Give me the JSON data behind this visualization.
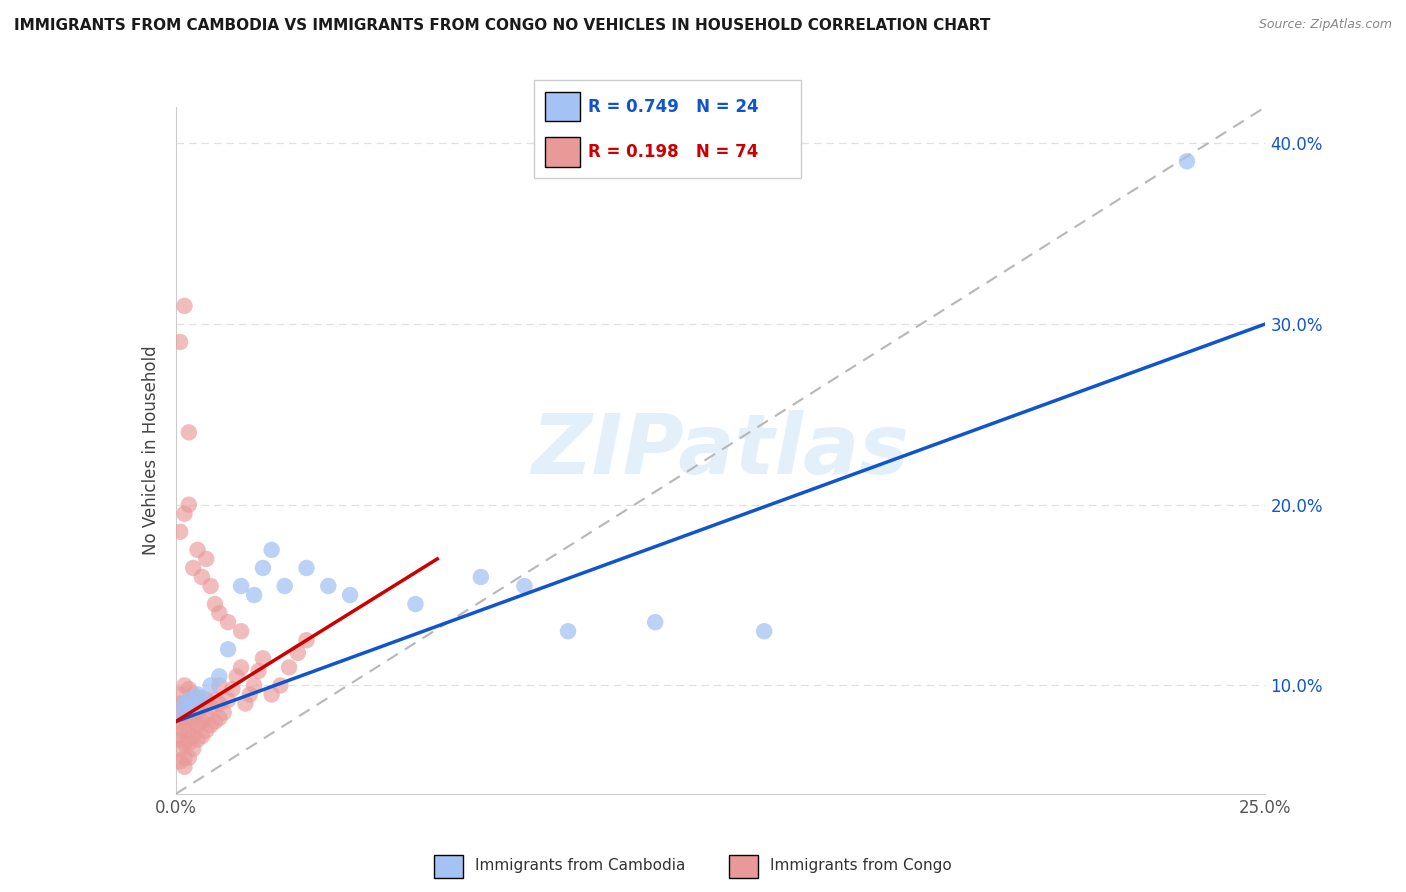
{
  "title": "IMMIGRANTS FROM CAMBODIA VS IMMIGRANTS FROM CONGO NO VEHICLES IN HOUSEHOLD CORRELATION CHART",
  "source": "Source: ZipAtlas.com",
  "ylabel": "No Vehicles in Household",
  "xlim": [
    0.0,
    0.25
  ],
  "ylim": [
    0.04,
    0.42
  ],
  "x_ticks": [
    0.0,
    0.05,
    0.1,
    0.15,
    0.2,
    0.25
  ],
  "y_ticks": [
    0.1,
    0.2,
    0.3,
    0.4
  ],
  "x_tick_labels": [
    "0.0%",
    "",
    "",
    "",
    "",
    "25.0%"
  ],
  "y_tick_labels_right": [
    "10.0%",
    "20.0%",
    "30.0%",
    "40.0%"
  ],
  "cambodia_color": "#a4c2f4",
  "congo_color": "#ea9999",
  "cambodia_line_color": "#1155cc",
  "congo_line_color": "#cc0000",
  "diag_line_color": "#b7b7b7",
  "legend_cambodia_label": "Immigrants from Cambodia",
  "legend_congo_label": "Immigrants from Congo",
  "R_cambodia": 0.749,
  "N_cambodia": 24,
  "R_congo": 0.198,
  "N_congo": 74,
  "watermark": "ZIPatlas",
  "grid_color": "#e0e0e0",
  "background_color": "#ffffff",
  "camb_line_x0": 0.0,
  "camb_line_y0": 0.08,
  "camb_line_x1": 0.25,
  "camb_line_y1": 0.3,
  "congo_line_x0": 0.0,
  "congo_line_y0": 0.08,
  "congo_line_x1": 0.06,
  "congo_line_y1": 0.17
}
